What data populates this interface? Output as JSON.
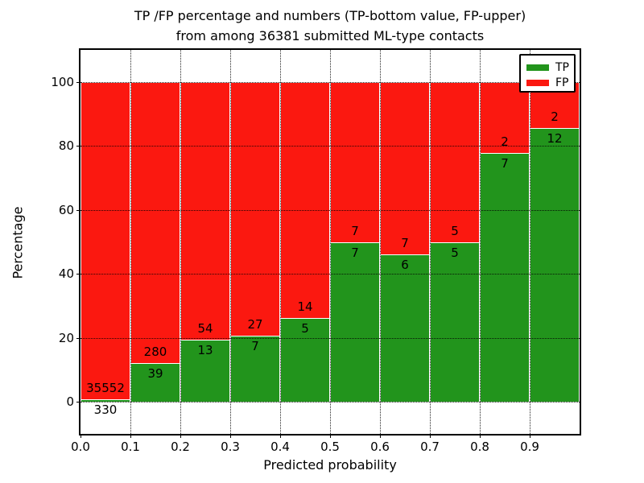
{
  "figure": {
    "title_line1": "TP /FP percentage and numbers (TP-bottom value, FP-upper)",
    "title_line2": "from among 36381 submitted ML-type contacts",
    "xlabel": "Predicted probability",
    "ylabel": "Percentage"
  },
  "legend": {
    "items": [
      {
        "label": "TP",
        "color": "#22941c"
      },
      {
        "label": "FP",
        "color": "#fb1810"
      }
    ]
  },
  "chart_data": {
    "type": "bar",
    "stacked": true,
    "normalized_to_percent": true,
    "title": "TP /FP percentage and numbers (TP-bottom value, FP-upper) from among 36381 submitted ML-type contacts",
    "xlabel": "Predicted probability",
    "ylabel": "Percentage",
    "total_contacts": 36381,
    "bin_width": 0.1,
    "bin_starts": [
      0.0,
      0.1,
      0.2,
      0.3,
      0.4,
      0.5,
      0.6,
      0.7,
      0.8,
      0.9
    ],
    "x_tick_labels": [
      "0.0",
      "0.1",
      "0.2",
      "0.3",
      "0.4",
      "0.5",
      "0.6",
      "0.7",
      "0.8",
      "0.9"
    ],
    "y_ticks": [
      0,
      20,
      40,
      60,
      80,
      100
    ],
    "xlim": [
      0.0,
      1.0
    ],
    "ylim": [
      -10,
      110
    ],
    "grid": "dotted",
    "legend_position": "upper right",
    "series": [
      {
        "name": "TP",
        "color": "#22941c",
        "counts": [
          330,
          39,
          13,
          7,
          5,
          7,
          6,
          5,
          7,
          12
        ],
        "percent": [
          0.92,
          12.23,
          19.4,
          20.59,
          26.32,
          50.0,
          46.15,
          50.0,
          77.78,
          85.71
        ]
      },
      {
        "name": "FP",
        "color": "#fb1810",
        "counts": [
          35552,
          280,
          54,
          27,
          14,
          7,
          7,
          5,
          2,
          2
        ],
        "percent": [
          99.08,
          87.77,
          80.6,
          79.41,
          73.68,
          50.0,
          53.85,
          50.0,
          22.22,
          14.29
        ]
      }
    ]
  }
}
